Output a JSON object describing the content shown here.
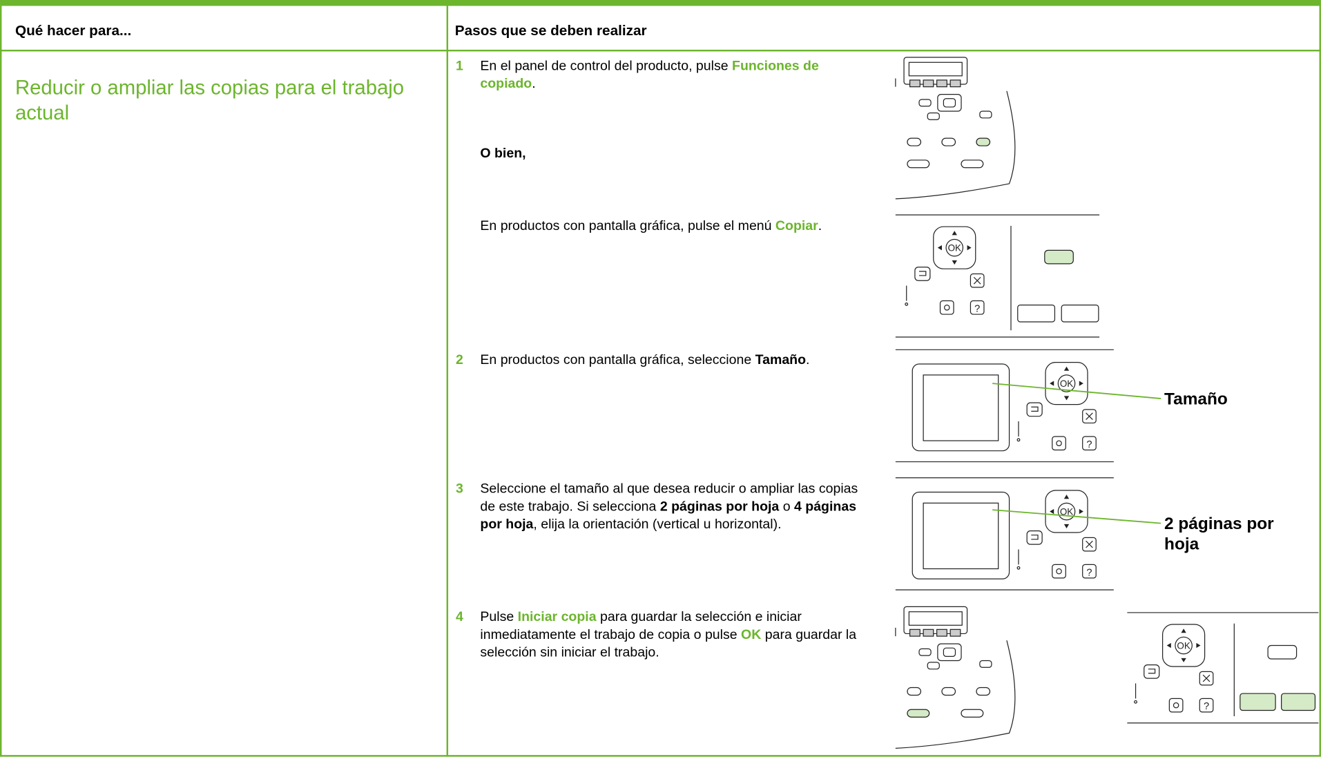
{
  "header": {
    "col1": "Qué hacer para...",
    "col2": "Pasos que se deben realizar"
  },
  "task": "Reducir o ampliar las copias para el trabajo actual",
  "steps": [
    {
      "number": "1",
      "segments": [
        "En el panel de control del producto, pulse ",
        "Funciones de copiado",
        "."
      ]
    },
    {
      "segments": [
        "O bien,"
      ]
    },
    {
      "segments": [
        "En productos con pantalla gráfica, pulse el menú ",
        "Copiar",
        "."
      ]
    },
    {
      "number": "2",
      "segments": [
        "En productos con pantalla gráfica, seleccione ",
        "Tamaño",
        "."
      ]
    },
    {
      "number": "3",
      "segments": [
        "Seleccione el tamaño al que desea reducir o ampliar las copias de este trabajo. Si selecciona ",
        "2 páginas por hoja",
        " o ",
        "4 páginas por hoja",
        ", elija la orientación (vertical u horizontal)."
      ]
    },
    {
      "number": "4",
      "segments": [
        "Pulse ",
        "Iniciar copia",
        " para guardar la selección e iniciar inmediatamente el trabajo de copia o pulse ",
        "OK",
        " para guardar la selección sin iniciar el trabajo."
      ]
    }
  ],
  "callouts": [
    "Tamaño",
    "2 páginas por hoja"
  ],
  "icons": {
    "ok": "OK",
    "help": "?"
  }
}
